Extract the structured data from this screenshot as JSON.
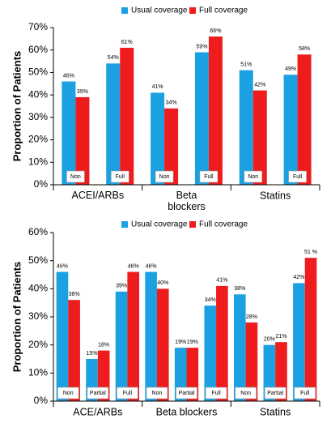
{
  "chart_data": [
    {
      "type": "bar",
      "y_label": "Proportion of Patients",
      "groups": [
        "ACEI/ARBs",
        "Beta blockers",
        "Statins"
      ],
      "categories": [
        "Non",
        "Full",
        "Non",
        "Full",
        "Non",
        "Full"
      ],
      "series": [
        {
          "name": "Usual coverage",
          "color": "#1ba1e2",
          "values": [
            46,
            54,
            41,
            59,
            51,
            49
          ],
          "value_labels": [
            "46%",
            "54%",
            "41%",
            "59%",
            "51%",
            "49%"
          ]
        },
        {
          "name": "Full coverage",
          "color": "#ee1c1c",
          "values": [
            39,
            61,
            34,
            66,
            42,
            58
          ],
          "value_labels": [
            "39%",
            "61%",
            "34%",
            "66%",
            "42%",
            "58%"
          ]
        }
      ],
      "ylim": [
        0,
        70
      ],
      "yticks": [
        {
          "value": 0,
          "label": "0%"
        },
        {
          "value": 10,
          "label": "10%"
        },
        {
          "value": 20,
          "label": "20%"
        },
        {
          "value": 30,
          "label": "30%"
        },
        {
          "value": 40,
          "label": "40%"
        },
        {
          "value": 50,
          "label": "50%"
        },
        {
          "value": 60,
          "label": "60%"
        },
        {
          "value": 70,
          "label": "70%"
        }
      ]
    },
    {
      "type": "bar",
      "y_label": "Proportion of Patients",
      "groups": [
        "ACE/ARBs",
        "Beta blockers",
        "Statins"
      ],
      "categories": [
        "Non",
        "Partial",
        "Full",
        "Non",
        "Partial",
        "Full",
        "Non",
        "Partial",
        "Full"
      ],
      "series": [
        {
          "name": "Usual coverage",
          "color": "#1ba1e2",
          "values": [
            46,
            15,
            39,
            46,
            19,
            34,
            38,
            20,
            42
          ],
          "value_labels": [
            "46%",
            "15%",
            "39%",
            "46%",
            "19%",
            "34%",
            "38%",
            "20%",
            "42%"
          ]
        },
        {
          "name": "Full coverage",
          "color": "#ee1c1c",
          "values": [
            36,
            18,
            46,
            40,
            19,
            41,
            28,
            21,
            51
          ],
          "value_labels": [
            "36%",
            "18%",
            "46%",
            "40%",
            "19%",
            "41%",
            "28%",
            "21%",
            "51 %"
          ]
        }
      ],
      "ylim": [
        0,
        60
      ],
      "yticks": [
        {
          "value": 0,
          "label": "0%"
        },
        {
          "value": 10,
          "label": "10%"
        },
        {
          "value": 20,
          "label": "20%"
        },
        {
          "value": 30,
          "label": "30%"
        },
        {
          "value": 40,
          "label": "40%"
        },
        {
          "value": 50,
          "label": "50%"
        },
        {
          "value": 60,
          "label": "60%"
        }
      ]
    }
  ]
}
